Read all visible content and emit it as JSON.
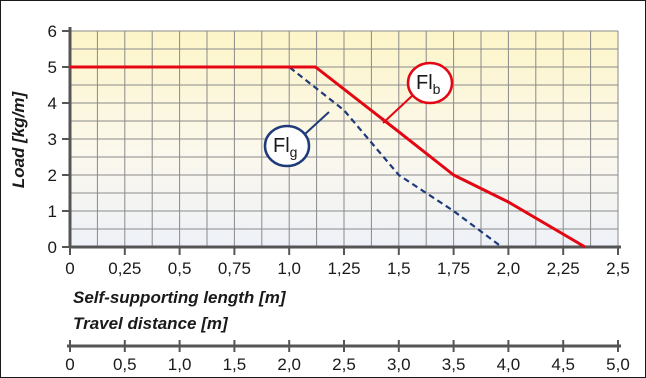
{
  "chart_data": {
    "type": "line",
    "ylabel": "Load [kg/m]",
    "xlabel": "Self-supporting length [m]",
    "xlabel2": "Travel distance [m]",
    "xlim": [
      0,
      2.5
    ],
    "ylim": [
      0,
      6
    ],
    "x2lim": [
      0,
      5.0
    ],
    "grid": true,
    "x_ticks": [
      "0",
      "0,25",
      "0,5",
      "0,75",
      "1,0",
      "1,25",
      "1,5",
      "1,75",
      "2,0",
      "2,25",
      "2,5"
    ],
    "x_tick_values": [
      0,
      0.25,
      0.5,
      0.75,
      1.0,
      1.25,
      1.5,
      1.75,
      2.0,
      2.25,
      2.5
    ],
    "y_ticks": [
      "0",
      "1",
      "2",
      "3",
      "4",
      "5",
      "6"
    ],
    "y_tick_values": [
      0,
      1,
      2,
      3,
      4,
      5,
      6
    ],
    "x2_ticks": [
      "0",
      "0,5",
      "1,0",
      "1,5",
      "2,0",
      "2,5",
      "3,0",
      "3,5",
      "4,0",
      "4,5",
      "5,0"
    ],
    "x2_tick_values": [
      0,
      0.5,
      1.0,
      1.5,
      2.0,
      2.5,
      3.0,
      3.5,
      4.0,
      4.5,
      5.0
    ],
    "series": [
      {
        "label_main": "Fl",
        "label_sub": "b",
        "color": "#e30613",
        "style": "solid",
        "points": [
          [
            0,
            5
          ],
          [
            1.12,
            5
          ],
          [
            1.5,
            3.2
          ],
          [
            1.75,
            2.0
          ],
          [
            2.0,
            1.25
          ],
          [
            2.35,
            0
          ]
        ]
      },
      {
        "label_main": "Fl",
        "label_sub": "g",
        "color": "#1f3a7a",
        "style": "dashed",
        "points": [
          [
            0,
            5
          ],
          [
            1.0,
            5
          ],
          [
            1.25,
            3.8
          ],
          [
            1.5,
            2.0
          ],
          [
            1.75,
            1.0
          ],
          [
            1.97,
            0
          ]
        ]
      }
    ]
  }
}
